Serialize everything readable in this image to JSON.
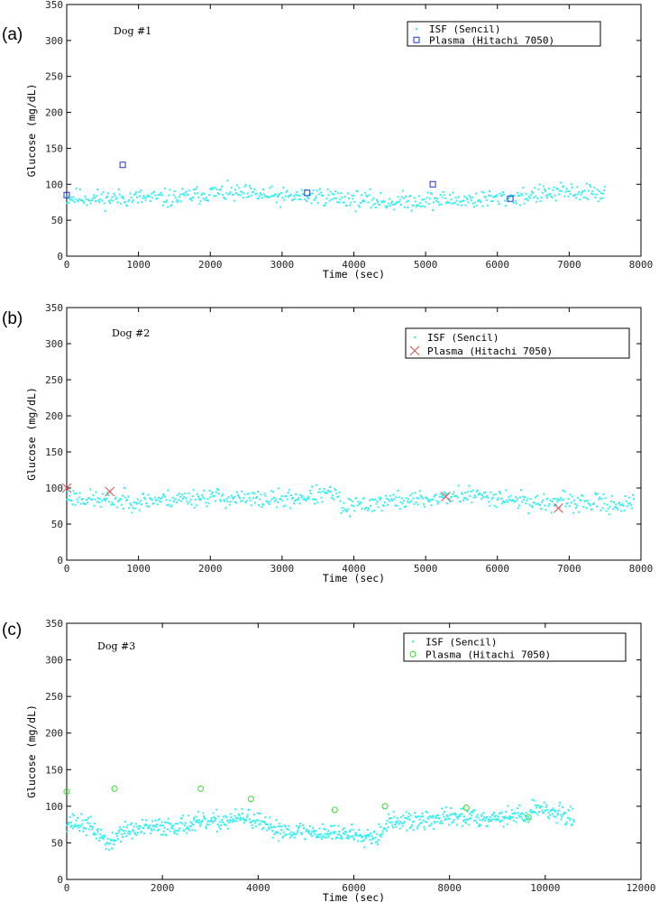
{
  "chart_data": [
    {
      "type": "scatter",
      "panel_label": "(a)",
      "annotation": "Dog #1",
      "xlabel": "Time (sec)",
      "ylabel": "Glucose (mg/dL)",
      "xlim": [
        0,
        8000
      ],
      "ylim": [
        0,
        350
      ],
      "x_ticks": [
        0,
        1000,
        2000,
        3000,
        4000,
        5000,
        6000,
        7000,
        8000
      ],
      "y_ticks": [
        0,
        50,
        100,
        150,
        200,
        250,
        300,
        350
      ],
      "grid": false,
      "legend_position": "top-right",
      "isf": {
        "name": "ISF (Sencil)",
        "marker": "dot",
        "color": "#33f0f0",
        "x_start": 0,
        "x_end": 7500,
        "count": 560,
        "seed": 11,
        "profile": [
          [
            0,
            82
          ],
          [
            500,
            80
          ],
          [
            1000,
            81
          ],
          [
            1500,
            80
          ],
          [
            2000,
            88
          ],
          [
            2500,
            86
          ],
          [
            3000,
            82
          ],
          [
            3500,
            84
          ],
          [
            4000,
            79
          ],
          [
            4500,
            75
          ],
          [
            5000,
            78
          ],
          [
            5500,
            78
          ],
          [
            6000,
            80
          ],
          [
            6500,
            85
          ],
          [
            7000,
            89
          ],
          [
            7500,
            88
          ]
        ],
        "spread": 9
      },
      "plasma": {
        "name": "Plasma (Hitachi 7050)",
        "marker": "square",
        "color": "#2233cc",
        "x": [
          0,
          780,
          3350,
          5100,
          6180
        ],
        "y": [
          85,
          127,
          88,
          100,
          80
        ]
      }
    },
    {
      "type": "scatter",
      "panel_label": "(b)",
      "annotation": "Dog #2",
      "xlabel": "Time (sec)",
      "ylabel": "Glucose (mg/dL)",
      "xlim": [
        0,
        8000
      ],
      "ylim": [
        0,
        350
      ],
      "x_ticks": [
        0,
        1000,
        2000,
        3000,
        4000,
        5000,
        6000,
        7000,
        8000
      ],
      "y_ticks": [
        0,
        50,
        100,
        150,
        200,
        250,
        300,
        350
      ],
      "grid": false,
      "legend_position": "top-right",
      "isf": {
        "name": "ISF (Sencil)",
        "marker": "dot",
        "color": "#33f0f0",
        "x_start": 0,
        "x_end": 7900,
        "count": 600,
        "seed": 23,
        "profile": [
          [
            0,
            88
          ],
          [
            500,
            83
          ],
          [
            1000,
            82
          ],
          [
            1500,
            85
          ],
          [
            2000,
            88
          ],
          [
            2500,
            84
          ],
          [
            3000,
            84
          ],
          [
            3500,
            90
          ],
          [
            3750,
            92
          ],
          [
            3850,
            70
          ],
          [
            4000,
            75
          ],
          [
            4500,
            82
          ],
          [
            5000,
            84
          ],
          [
            5500,
            90
          ],
          [
            6000,
            88
          ],
          [
            6500,
            80
          ],
          [
            7000,
            80
          ],
          [
            7500,
            78
          ],
          [
            7900,
            78
          ]
        ],
        "spread": 9
      },
      "plasma": {
        "name": "Plasma (Hitachi 7050)",
        "marker": "x",
        "color": "#e05050",
        "x": [
          0,
          600,
          5280,
          6850
        ],
        "y": [
          100,
          95,
          88,
          72
        ]
      }
    },
    {
      "type": "scatter",
      "panel_label": "(c)",
      "annotation": "Dog #3",
      "xlabel": "Time (sec)",
      "ylabel": "Glucose (mg/dL)",
      "xlim": [
        0,
        12000
      ],
      "ylim": [
        0,
        350
      ],
      "x_ticks": [
        0,
        2000,
        4000,
        6000,
        8000,
        10000,
        12000
      ],
      "y_ticks": [
        0,
        50,
        100,
        150,
        200,
        250,
        300,
        350
      ],
      "grid": false,
      "legend_position": "top-right",
      "isf": {
        "name": "ISF (Sencil)",
        "marker": "dot",
        "color": "#33f0f0",
        "x_start": 0,
        "x_end": 10600,
        "count": 800,
        "seed": 37,
        "profile": [
          [
            0,
            80
          ],
          [
            500,
            72
          ],
          [
            800,
            55
          ],
          [
            900,
            45
          ],
          [
            1100,
            65
          ],
          [
            2000,
            72
          ],
          [
            3000,
            78
          ],
          [
            3500,
            82
          ],
          [
            3800,
            85
          ],
          [
            4200,
            70
          ],
          [
            5000,
            65
          ],
          [
            6000,
            62
          ],
          [
            6500,
            60
          ],
          [
            6700,
            78
          ],
          [
            7500,
            80
          ],
          [
            8000,
            85
          ],
          [
            9000,
            85
          ],
          [
            9600,
            88
          ],
          [
            9900,
            100
          ],
          [
            10200,
            90
          ],
          [
            10600,
            85
          ]
        ],
        "spread": 9
      },
      "plasma": {
        "name": "Plasma (Hitachi 7050)",
        "marker": "circle",
        "color": "#33dd33",
        "x": [
          0,
          1000,
          2800,
          3850,
          5600,
          6650,
          8350,
          9650
        ],
        "y": [
          120,
          124,
          124,
          110,
          95,
          100,
          98,
          85
        ]
      }
    }
  ]
}
